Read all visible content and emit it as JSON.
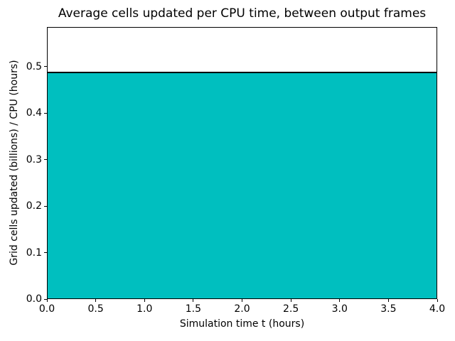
{
  "chart_data": {
    "type": "area",
    "title": "Average cells updated per CPU time, between output frames",
    "xlabel": "Simulation time t (hours)",
    "ylabel": "Grid cells updated (billions) / CPU (hours)",
    "xlim": [
      0.0,
      4.0
    ],
    "ylim": [
      0.0,
      0.585
    ],
    "xticks": [
      0.0,
      0.5,
      1.0,
      1.5,
      2.0,
      2.5,
      3.0,
      3.5,
      4.0
    ],
    "xtick_labels": [
      "0.0",
      "0.5",
      "1.0",
      "1.5",
      "2.0",
      "2.5",
      "3.0",
      "3.5",
      "4.0"
    ],
    "yticks": [
      0.0,
      0.1,
      0.2,
      0.3,
      0.4,
      0.5
    ],
    "ytick_labels": [
      "0.0",
      "0.1",
      "0.2",
      "0.3",
      "0.4",
      "0.5"
    ],
    "grid": false,
    "legend": "none",
    "series": [
      {
        "name": "average-cells-updated-per-cpu-time",
        "style": "constant filled area with line on top",
        "x": [
          0.0,
          4.0
        ],
        "y": [
          0.488,
          0.488
        ],
        "value": 0.488,
        "fill_color": "#00BFBF",
        "line_color": "#000000"
      }
    ],
    "colors": {
      "background": "#ffffff",
      "axes": "#000000",
      "text": "#000000"
    }
  }
}
